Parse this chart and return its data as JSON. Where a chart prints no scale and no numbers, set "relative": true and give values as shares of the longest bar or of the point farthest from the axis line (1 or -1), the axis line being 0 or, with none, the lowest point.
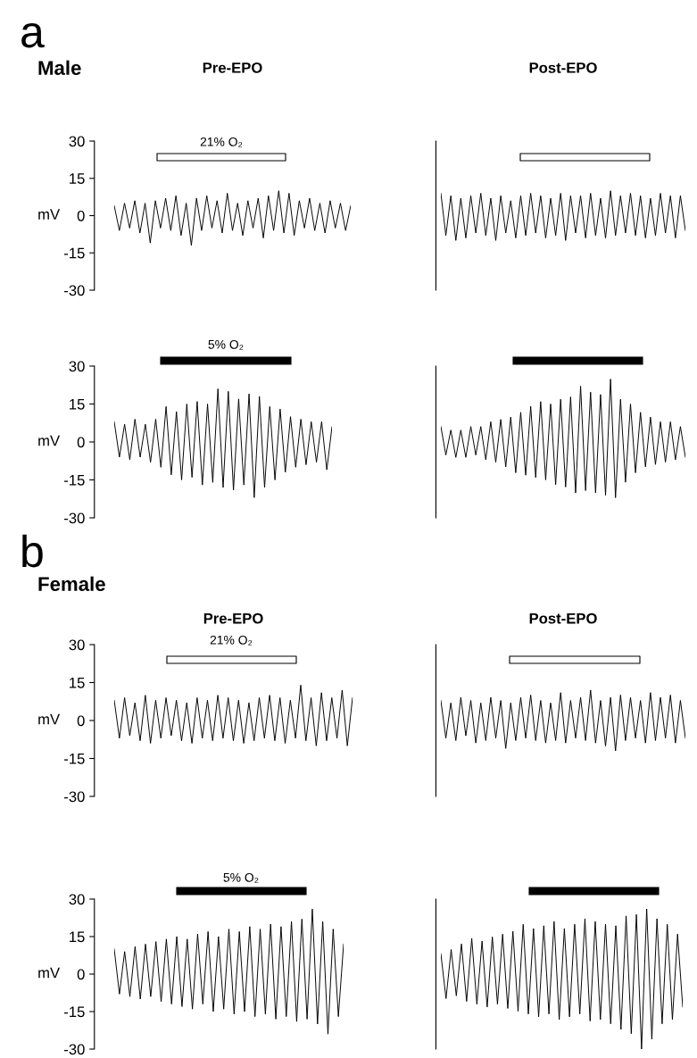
{
  "chart_data": [
    {
      "type": "line",
      "title": "Pre-EPO",
      "ylabel": "mV",
      "annotations": [
        "a",
        "Male",
        "21% O₂"
      ],
      "ylim": [
        -30,
        30
      ],
      "yticks": [
        -30,
        -15,
        0,
        15,
        30
      ],
      "tick_labels": "y",
      "categories": [
        null,
        null,
        null,
        null,
        null,
        null,
        null,
        null,
        null,
        null,
        null,
        null,
        null,
        null,
        null,
        null,
        null,
        null,
        null,
        null,
        null,
        null,
        null,
        null,
        null,
        null,
        null,
        null,
        null,
        null,
        null,
        null,
        null,
        null,
        null,
        null,
        null,
        null,
        null,
        null,
        null,
        null,
        null,
        null,
        null,
        null,
        null
      ],
      "series": [
        {
          "color": "#000000",
          "values": [
            4,
            -6,
            5,
            -5,
            6,
            -7,
            5,
            -11,
            6,
            -5,
            7,
            -6,
            8,
            -8,
            5,
            -12,
            7,
            -6,
            8,
            -5,
            6,
            -7,
            9,
            -6,
            5,
            -8,
            6,
            -5,
            7,
            -9,
            8,
            -6,
            10,
            -7,
            9,
            -8,
            6,
            -5,
            7,
            -6,
            5,
            -7,
            6,
            -5,
            5,
            -6,
            4
          ]
        }
      ]
    },
    {
      "type": "line",
      "title": "Post-EPO",
      "relative": true,
      "tick_labels": false,
      "categories": [
        null,
        null,
        null,
        null,
        null,
        null,
        null,
        null,
        null,
        null,
        null,
        null,
        null,
        null,
        null,
        null,
        null,
        null,
        null,
        null,
        null,
        null,
        null,
        null,
        null,
        null,
        null,
        null,
        null,
        null,
        null,
        null,
        null,
        null,
        null,
        null,
        null,
        null,
        null,
        null,
        null,
        null,
        null,
        null,
        null,
        null,
        null,
        null,
        null,
        null
      ],
      "series": [
        {
          "color": "#000000",
          "values": [
            0.95,
            0.1,
            0.9,
            0,
            0.85,
            0.05,
            0.9,
            0.15,
            0.95,
            0.1,
            0.85,
            0,
            0.9,
            0.15,
            0.8,
            0.05,
            0.9,
            0.1,
            0.95,
            0.15,
            0.9,
            0.05,
            0.85,
            0.1,
            0.95,
            0,
            0.9,
            0.15,
            0.9,
            0.05,
            0.95,
            0.1,
            0.85,
            0.05,
            1,
            0.1,
            0.9,
            0.15,
            0.95,
            0.1,
            0.9,
            0.05,
            0.85,
            0.1,
            0.95,
            0.15,
            0.9,
            0.05,
            0.9,
            0.2
          ]
        }
      ]
    },
    {
      "type": "line",
      "ylabel": "mV",
      "annotations": [
        "5% O₂"
      ],
      "ylim": [
        -30,
        30
      ],
      "yticks": [
        -30,
        -15,
        0,
        15,
        30
      ],
      "tick_labels": "y",
      "categories": [
        null,
        null,
        null,
        null,
        null,
        null,
        null,
        null,
        null,
        null,
        null,
        null,
        null,
        null,
        null,
        null,
        null,
        null,
        null,
        null,
        null,
        null,
        null,
        null,
        null,
        null,
        null,
        null,
        null,
        null,
        null,
        null,
        null,
        null,
        null,
        null,
        null,
        null,
        null,
        null,
        null,
        null,
        null
      ],
      "series": [
        {
          "color": "#000000",
          "values": [
            8,
            -6,
            7,
            -7,
            9,
            -6,
            7,
            -8,
            9,
            -10,
            14,
            -13,
            12,
            -15,
            15,
            -14,
            16,
            -17,
            15,
            -16,
            21,
            -18,
            20,
            -19,
            17,
            -17,
            19,
            -22,
            18,
            -18,
            14,
            -15,
            13,
            -12,
            10,
            -10,
            9,
            -9,
            8,
            -8,
            8,
            -11,
            6
          ]
        }
      ]
    },
    {
      "type": "line",
      "relative": true,
      "tick_labels": false,
      "categories": [
        null,
        null,
        null,
        null,
        null,
        null,
        null,
        null,
        null,
        null,
        null,
        null,
        null,
        null,
        null,
        null,
        null,
        null,
        null,
        null,
        null,
        null,
        null,
        null,
        null,
        null,
        null,
        null,
        null,
        null,
        null,
        null,
        null,
        null,
        null,
        null,
        null,
        null,
        null,
        null,
        null,
        null,
        null,
        null,
        null,
        null,
        null,
        null,
        null,
        null
      ],
      "series": [
        {
          "color": "#000000",
          "values": [
            0.6,
            0.36,
            0.57,
            0.34,
            0.57,
            0.34,
            0.6,
            0.36,
            0.6,
            0.32,
            0.64,
            0.3,
            0.66,
            0.26,
            0.68,
            0.21,
            0.72,
            0.19,
            0.77,
            0.17,
            0.81,
            0.15,
            0.79,
            0.11,
            0.83,
            0.09,
            0.85,
            0.04,
            0.94,
            0.06,
            0.89,
            0.04,
            0.87,
            0.02,
            1,
            0,
            0.83,
            0.13,
            0.79,
            0.21,
            0.72,
            0.26,
            0.68,
            0.28,
            0.64,
            0.3,
            0.64,
            0.32,
            0.6,
            0.34
          ]
        }
      ]
    },
    {
      "type": "line",
      "title": "Pre-EPO",
      "ylabel": "mV",
      "annotations": [
        "b",
        "Female",
        "21% O₂"
      ],
      "ylim": [
        -30,
        30
      ],
      "yticks": [
        -30,
        -15,
        0,
        15,
        30
      ],
      "tick_labels": "y",
      "categories": [
        null,
        null,
        null,
        null,
        null,
        null,
        null,
        null,
        null,
        null,
        null,
        null,
        null,
        null,
        null,
        null,
        null,
        null,
        null,
        null,
        null,
        null,
        null,
        null,
        null,
        null,
        null,
        null,
        null,
        null,
        null,
        null,
        null,
        null,
        null,
        null,
        null,
        null,
        null,
        null,
        null,
        null,
        null,
        null,
        null,
        null,
        null
      ],
      "series": [
        {
          "color": "#000000",
          "values": [
            8,
            -7,
            9,
            -6,
            7,
            -8,
            10,
            -9,
            8,
            -7,
            9,
            -6,
            8,
            -8,
            7,
            -9,
            9,
            -7,
            8,
            -8,
            10,
            -7,
            9,
            -8,
            8,
            -9,
            7,
            -8,
            9,
            -7,
            10,
            -8,
            9,
            -9,
            8,
            -7,
            14,
            -8,
            9,
            -10,
            11,
            -8,
            9,
            -7,
            12,
            -10,
            9
          ]
        }
      ]
    },
    {
      "type": "line",
      "title": "Post-EPO",
      "relative": true,
      "tick_labels": false,
      "categories": [
        null,
        null,
        null,
        null,
        null,
        null,
        null,
        null,
        null,
        null,
        null,
        null,
        null,
        null,
        null,
        null,
        null,
        null,
        null,
        null,
        null,
        null,
        null,
        null,
        null,
        null,
        null,
        null,
        null,
        null,
        null,
        null,
        null,
        null,
        null,
        null,
        null,
        null,
        null,
        null,
        null,
        null,
        null,
        null,
        null,
        null,
        null,
        null,
        null,
        null
      ],
      "series": [
        {
          "color": "#000000",
          "values": [
            0.83,
            0.21,
            0.79,
            0.17,
            0.88,
            0.25,
            0.83,
            0.13,
            0.79,
            0.17,
            0.88,
            0.21,
            0.83,
            0.04,
            0.79,
            0.17,
            0.88,
            0.21,
            0.92,
            0.17,
            0.83,
            0.13,
            0.79,
            0.17,
            0.96,
            0.13,
            0.83,
            0.21,
            0.88,
            0.17,
            1,
            0.13,
            0.83,
            0.08,
            0.88,
            0,
            0.92,
            0.17,
            0.88,
            0.21,
            0.83,
            0.13,
            0.96,
            0.17,
            0.88,
            0.21,
            0.92,
            0.13,
            0.83,
            0.21
          ]
        }
      ]
    },
    {
      "type": "line",
      "ylabel": "mV",
      "annotations": [
        "5% O₂"
      ],
      "ylim": [
        -30,
        30
      ],
      "yticks": [
        -30,
        -15,
        0,
        15,
        30
      ],
      "tick_labels": "y",
      "categories": [
        null,
        null,
        null,
        null,
        null,
        null,
        null,
        null,
        null,
        null,
        null,
        null,
        null,
        null,
        null,
        null,
        null,
        null,
        null,
        null,
        null,
        null,
        null,
        null,
        null,
        null,
        null,
        null,
        null,
        null,
        null,
        null,
        null,
        null,
        null,
        null,
        null,
        null,
        null,
        null,
        null,
        null,
        null,
        null,
        null
      ],
      "series": [
        {
          "color": "#000000",
          "values": [
            10,
            -8,
            9,
            -9,
            11,
            -10,
            12,
            -9,
            13,
            -11,
            14,
            -12,
            15,
            -13,
            14,
            -14,
            16,
            -12,
            17,
            -15,
            15,
            -14,
            18,
            -16,
            17,
            -15,
            19,
            -17,
            18,
            -16,
            20,
            -18,
            19,
            -17,
            21,
            -19,
            22,
            -18,
            26,
            -20,
            21,
            -24,
            18,
            -17,
            12
          ]
        }
      ]
    },
    {
      "type": "line",
      "relative": true,
      "tick_labels": false,
      "categories": [
        null,
        null,
        null,
        null,
        null,
        null,
        null,
        null,
        null,
        null,
        null,
        null,
        null,
        null,
        null,
        null,
        null,
        null,
        null,
        null,
        null,
        null,
        null,
        null,
        null,
        null,
        null,
        null,
        null,
        null,
        null,
        null,
        null,
        null,
        null,
        null,
        null,
        null,
        null,
        null,
        null,
        null,
        null,
        null,
        null,
        null,
        null,
        null
      ],
      "series": [
        {
          "color": "#000000",
          "values": [
            0.68,
            0.36,
            0.71,
            0.38,
            0.75,
            0.34,
            0.79,
            0.32,
            0.77,
            0.3,
            0.8,
            0.32,
            0.82,
            0.29,
            0.84,
            0.27,
            0.89,
            0.25,
            0.86,
            0.23,
            0.88,
            0.25,
            0.91,
            0.21,
            0.86,
            0.23,
            0.89,
            0.25,
            0.93,
            0.2,
            0.91,
            0.21,
            0.89,
            0.18,
            0.88,
            0.14,
            0.95,
            0.11,
            0.96,
            0,
            1,
            0.07,
            0.93,
            0.18,
            0.89,
            0.21,
            0.82,
            0.3
          ]
        }
      ]
    }
  ]
}
